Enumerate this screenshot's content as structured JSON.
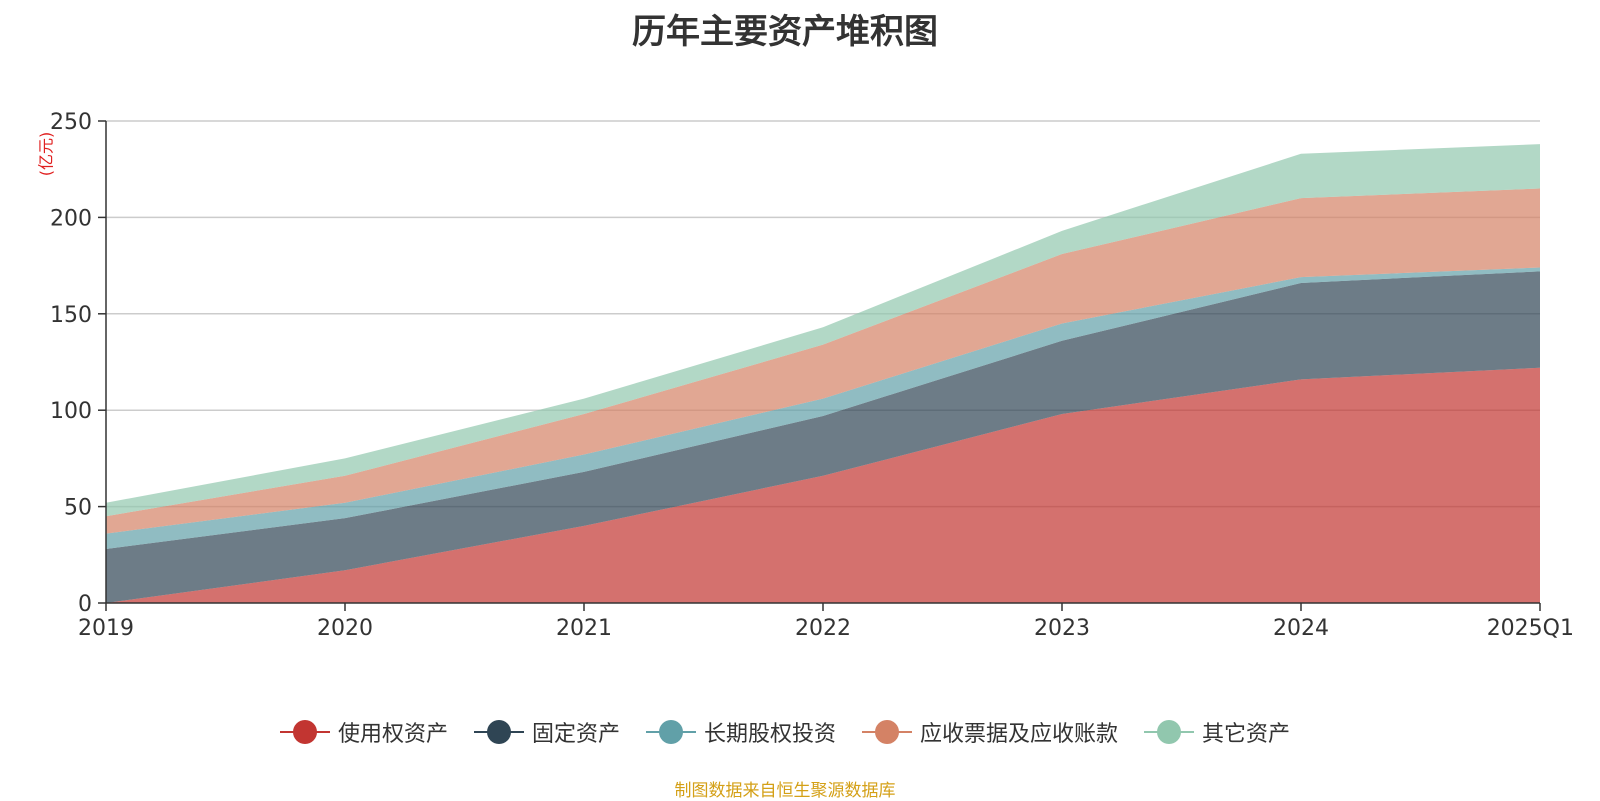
{
  "chart_data": {
    "type": "area",
    "stacked": true,
    "title": "历年主要资产堆积图",
    "unit_label": "(亿元)",
    "categories": [
      "2019",
      "2020",
      "2021",
      "2022",
      "2023",
      "2024",
      "2025Q1"
    ],
    "ylim": [
      0,
      250
    ],
    "yticks": [
      "0",
      "50",
      "100",
      "150",
      "200",
      "250"
    ],
    "grid": true,
    "legend_position": "bottom",
    "series": [
      {
        "name": "使用权资产",
        "color": "#c23531",
        "values": [
          0,
          17,
          40,
          66,
          98,
          116,
          122
        ]
      },
      {
        "name": "固定资产",
        "color": "#2f4554",
        "values": [
          28,
          27,
          28,
          31,
          38,
          50,
          50
        ]
      },
      {
        "name": "长期股权投资",
        "color": "#61a0a8",
        "values": [
          8,
          8,
          9,
          9,
          9,
          3,
          2
        ]
      },
      {
        "name": "应收票据及应收账款",
        "color": "#d48265",
        "values": [
          9,
          14,
          21,
          28,
          36,
          41,
          41
        ]
      },
      {
        "name": "其它资产",
        "color": "#91c7ae",
        "values": [
          7,
          9,
          8,
          9,
          12,
          23,
          23
        ]
      }
    ]
  },
  "footer": {
    "source": "制图数据来自恒生聚源数据库"
  }
}
